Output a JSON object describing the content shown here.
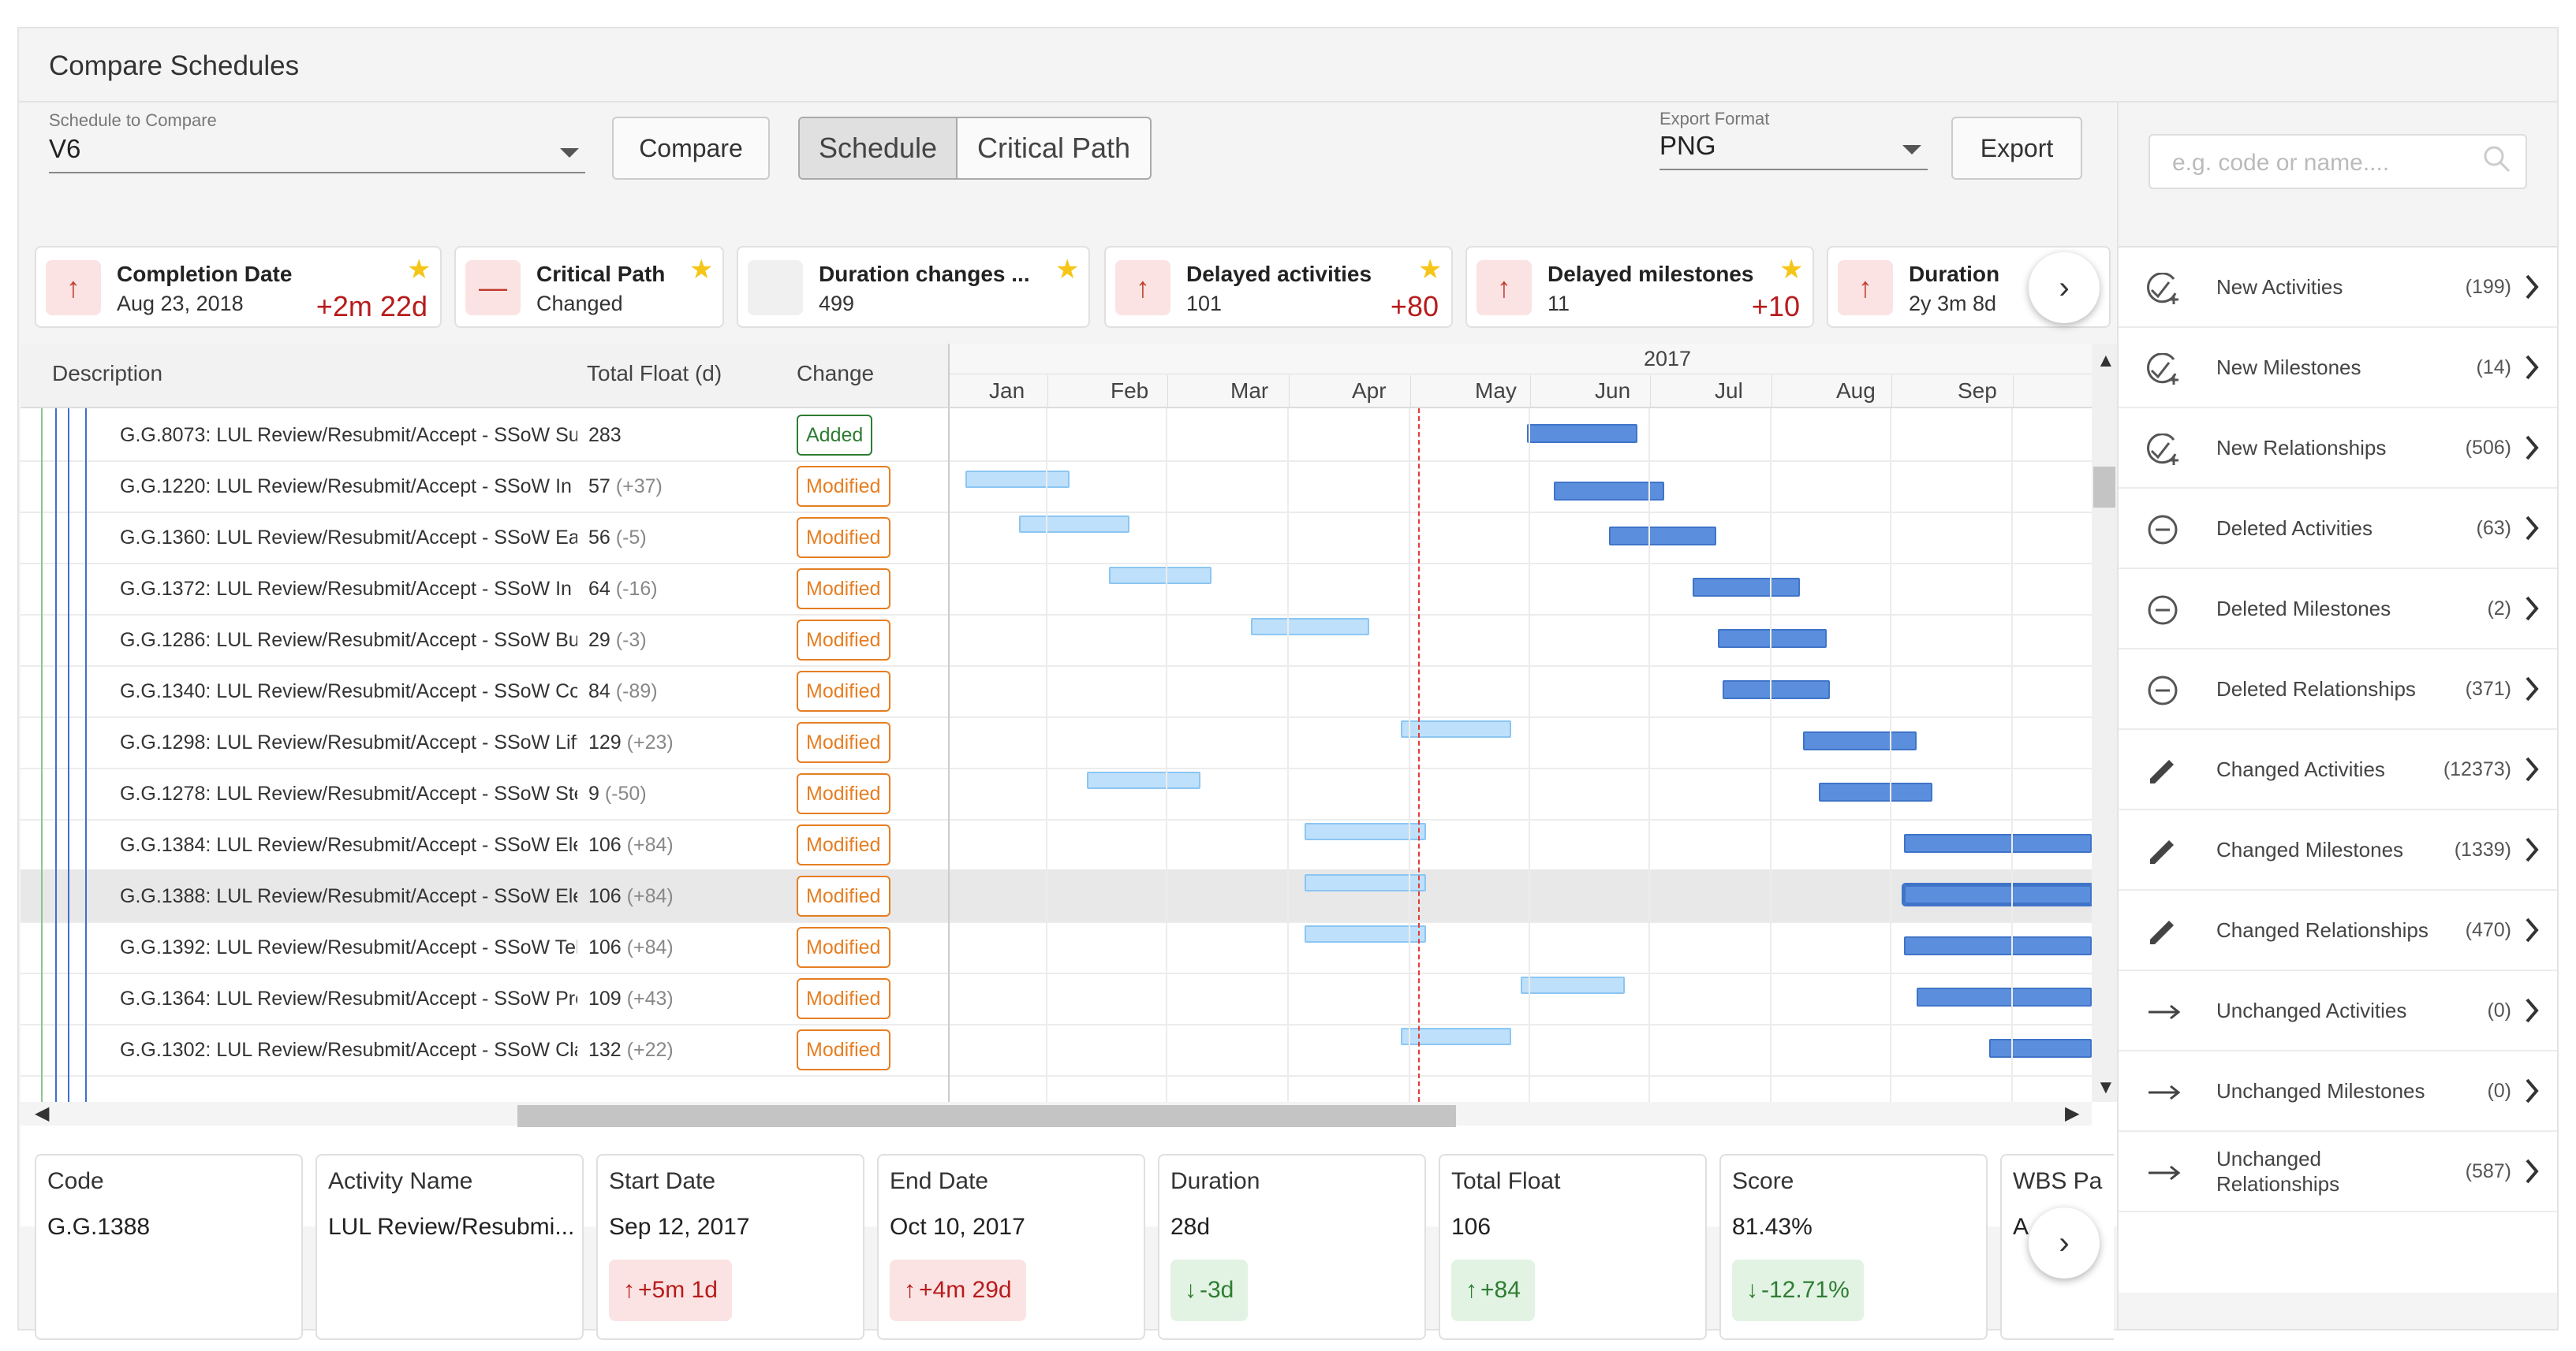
{
  "app": {
    "title": "Compare Schedules"
  },
  "controls": {
    "schedule_label": "Schedule to Compare",
    "schedule_value": "V6",
    "compare_btn": "Compare",
    "toggle": [
      "Schedule",
      "Critical Path"
    ],
    "export_label": "Export Format",
    "export_value": "PNG",
    "export_btn": "Export",
    "search_placeholder": "e.g. code or name...."
  },
  "kpis": [
    {
      "title": "Completion Date",
      "value": "Aug 23, 2018",
      "delta": "+2m 22d",
      "icon": "arrow-up-icon",
      "starred": true
    },
    {
      "title": "Critical Path",
      "value": "Changed",
      "delta": "",
      "icon": "minus-icon",
      "starred": true
    },
    {
      "title": "Duration changes ...",
      "value": "499",
      "delta": "",
      "icon": "blank-icon",
      "starred": true
    },
    {
      "title": "Delayed activities",
      "value": "101",
      "delta": "+80",
      "icon": "arrow-up-icon",
      "starred": true
    },
    {
      "title": "Delayed milestones",
      "value": "11",
      "delta": "+10",
      "icon": "arrow-up-icon",
      "starred": true
    },
    {
      "title": "Duration",
      "value": "2y 3m 8d",
      "delta": "",
      "icon": "arrow-up-icon",
      "starred": false
    }
  ],
  "grid": {
    "headers": {
      "description": "Description",
      "float": "Total Float (d)",
      "change": "Change"
    },
    "year": "2017",
    "months": [
      "Jan",
      "Feb",
      "Mar",
      "Apr",
      "May",
      "Jun",
      "Jul",
      "Aug",
      "Sep"
    ],
    "rows": [
      {
        "desc": "G.G.8073: LUL Review/Resubmit/Accept - SSoW Sul",
        "float": "283",
        "delta": "",
        "change": "Added"
      },
      {
        "desc": "G.G.1220: LUL Review/Resubmit/Accept - SSoW In :",
        "float": "57",
        "delta": "(+37)",
        "change": "Modified"
      },
      {
        "desc": "G.G.1360: LUL Review/Resubmit/Accept - SSoW Ear",
        "float": "56",
        "delta": "(-5)",
        "change": "Modified"
      },
      {
        "desc": "G.G.1372: LUL Review/Resubmit/Accept - SSoW In :",
        "float": "64",
        "delta": "(-16)",
        "change": "Modified"
      },
      {
        "desc": "G.G.1286: LUL Review/Resubmit/Accept - SSoW Bui",
        "float": "29",
        "delta": "(-3)",
        "change": "Modified"
      },
      {
        "desc": "G.G.1340: LUL Review/Resubmit/Accept - SSoW Co",
        "float": "84",
        "delta": "(-89)",
        "change": "Modified"
      },
      {
        "desc": "G.G.1298: LUL Review/Resubmit/Accept - SSoW Lift",
        "float": "129",
        "delta": "(+23)",
        "change": "Modified"
      },
      {
        "desc": "G.G.1278: LUL Review/Resubmit/Accept - SSoW Ste",
        "float": "9",
        "delta": "(-50)",
        "change": "Modified"
      },
      {
        "desc": "G.G.1384: LUL Review/Resubmit/Accept - SSoW Ele",
        "float": "106",
        "delta": "(+84)",
        "change": "Modified"
      },
      {
        "desc": "G.G.1388: LUL Review/Resubmit/Accept - SSoW Ele",
        "float": "106",
        "delta": "(+84)",
        "change": "Modified"
      },
      {
        "desc": "G.G.1392: LUL Review/Resubmit/Accept - SSoW Tel",
        "float": "106",
        "delta": "(+84)",
        "change": "Modified"
      },
      {
        "desc": "G.G.1364: LUL Review/Resubmit/Accept - SSoW Pre",
        "float": "109",
        "delta": "(+43)",
        "change": "Modified"
      },
      {
        "desc": "G.G.1302: LUL Review/Resubmit/Accept - SSoW Cla",
        "float": "132",
        "delta": "(+22)",
        "change": "Modified"
      }
    ]
  },
  "details": [
    {
      "label": "Code",
      "value": "G.G.1388",
      "delta": "",
      "dir": ""
    },
    {
      "label": "Activity Name",
      "value": "LUL Review/Resubmi...",
      "delta": "",
      "dir": ""
    },
    {
      "label": "Start Date",
      "value": "Sep 12, 2017",
      "delta": "+5m 1d",
      "dir": "up"
    },
    {
      "label": "End Date",
      "value": "Oct 10, 2017",
      "delta": "+4m 29d",
      "dir": "up"
    },
    {
      "label": "Duration",
      "value": "28d",
      "delta": "-3d",
      "dir": "down"
    },
    {
      "label": "Total Float",
      "value": "106",
      "delta": "+84",
      "dir": "up-good"
    },
    {
      "label": "Score",
      "value": "81.43%",
      "delta": "-12.71%",
      "dir": "down"
    },
    {
      "label": "WBS Pa",
      "value": "A",
      "delta": "",
      "dir": ""
    }
  ],
  "sidebar": [
    {
      "label": "New Activities",
      "count": "(199)",
      "icon": "check-plus-icon"
    },
    {
      "label": "New Milestones",
      "count": "(14)",
      "icon": "check-plus-icon"
    },
    {
      "label": "New Relationships",
      "count": "(506)",
      "icon": "check-plus-icon"
    },
    {
      "label": "Deleted Activities",
      "count": "(63)",
      "icon": "minus-circle-icon"
    },
    {
      "label": "Deleted Milestones",
      "count": "(2)",
      "icon": "minus-circle-icon"
    },
    {
      "label": "Deleted Relationships",
      "count": "(371)",
      "icon": "minus-circle-icon"
    },
    {
      "label": "Changed Activities",
      "count": "(12373)",
      "icon": "pencil-icon"
    },
    {
      "label": "Changed Milestones",
      "count": "(1339)",
      "icon": "pencil-icon"
    },
    {
      "label": "Changed Relationships",
      "count": "(470)",
      "icon": "pencil-icon"
    },
    {
      "label": "Unchanged Activities",
      "count": "(0)",
      "icon": "arrow-right-icon"
    },
    {
      "label": "Unchanged Milestones",
      "count": "(0)",
      "icon": "arrow-right-icon"
    },
    {
      "label": "Unchanged Relationships",
      "count": "(587)",
      "icon": "arrow-right-icon"
    }
  ],
  "colors": {
    "accent_blue": "#5b8fde",
    "prev_bar": "#bfe0fb",
    "added": "#2e7d32",
    "modified": "#e67e22",
    "delay_red": "#b71c1c",
    "today_line": "#e53935",
    "star": "#f5c518"
  }
}
